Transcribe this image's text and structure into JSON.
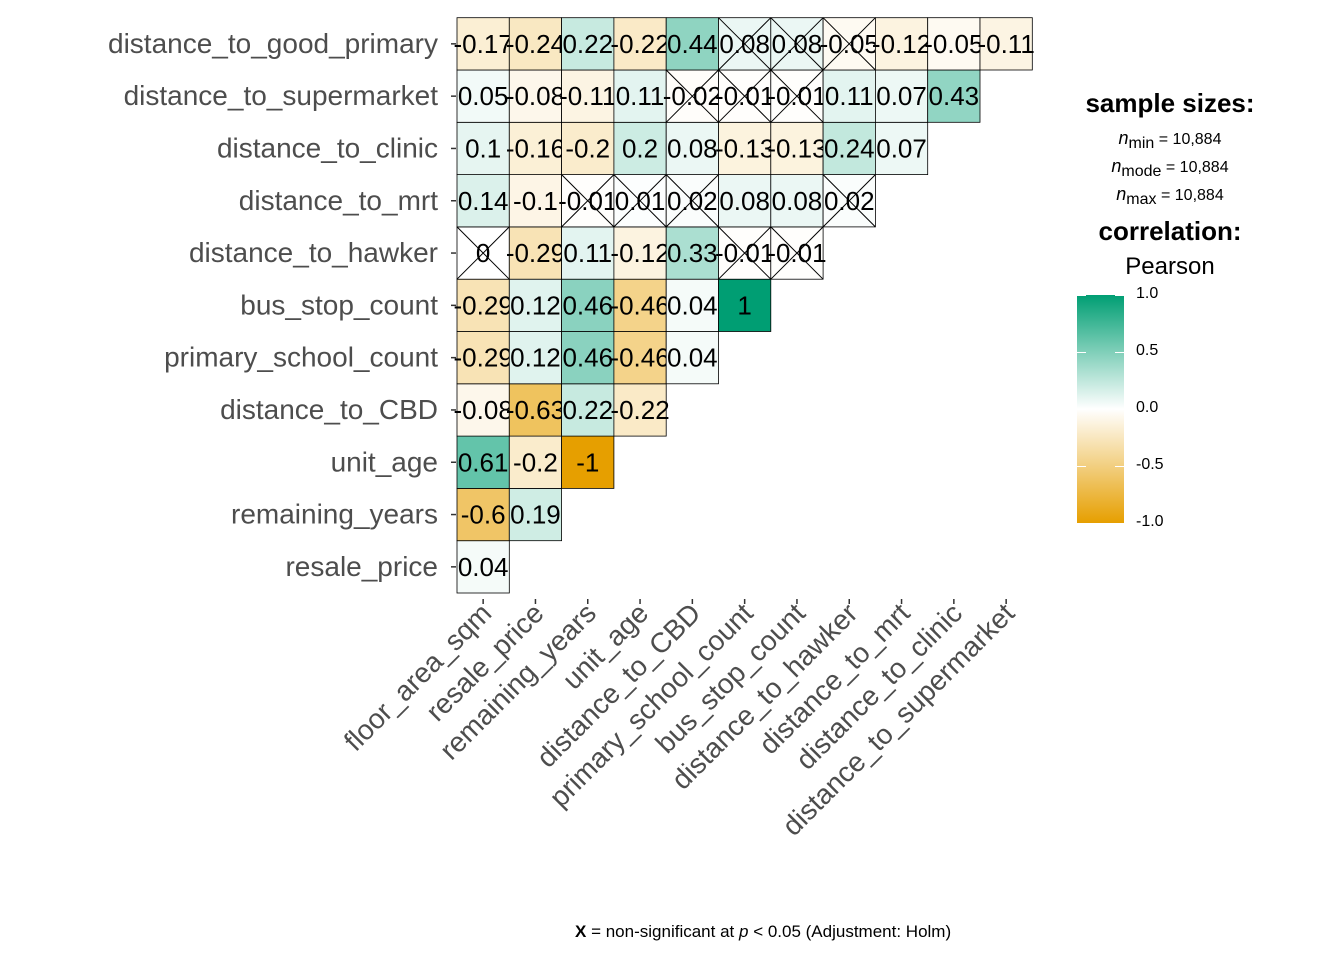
{
  "chart_data": {
    "type": "heatmap",
    "x_labels": [
      "floor_area_sqm",
      "resale_price",
      "remaining_years",
      "unit_age",
      "distance_to_CBD",
      "primary_school_count",
      "bus_stop_count",
      "distance_to_hawker",
      "distance_to_mrt",
      "distance_to_clinic",
      "distance_to_supermarket"
    ],
    "y_labels": [
      "resale_price",
      "remaining_years",
      "unit_age",
      "distance_to_CBD",
      "primary_school_count",
      "bus_stop_count",
      "distance_to_hawker",
      "distance_to_mrt",
      "distance_to_clinic",
      "distance_to_supermarket",
      "distance_to_good_primary"
    ],
    "cells": [
      {
        "row": "resale_price",
        "values": [
          "0.04"
        ],
        "nonsig": [
          false
        ]
      },
      {
        "row": "remaining_years",
        "values": [
          "-0.6",
          "0.19"
        ],
        "nonsig": [
          false,
          false
        ]
      },
      {
        "row": "unit_age",
        "values": [
          "0.61",
          "-0.2",
          "-1"
        ],
        "nonsig": [
          false,
          false,
          false
        ]
      },
      {
        "row": "distance_to_CBD",
        "values": [
          "-0.08",
          "-0.63",
          "0.22",
          "-0.22"
        ],
        "nonsig": [
          false,
          false,
          false,
          false
        ]
      },
      {
        "row": "primary_school_count",
        "values": [
          "-0.29",
          "0.12",
          "0.46",
          "-0.46",
          "0.04"
        ],
        "nonsig": [
          false,
          false,
          false,
          false,
          false
        ]
      },
      {
        "row": "bus_stop_count",
        "values": [
          "-0.29",
          "0.12",
          "0.46",
          "-0.46",
          "0.04",
          "1"
        ],
        "nonsig": [
          false,
          false,
          false,
          false,
          false,
          false
        ]
      },
      {
        "row": "distance_to_hawker",
        "values": [
          "0",
          "-0.29",
          "0.11",
          "-0.12",
          "0.33",
          "-0.01",
          "-0.01"
        ],
        "nonsig": [
          true,
          false,
          false,
          false,
          false,
          true,
          true
        ]
      },
      {
        "row": "distance_to_mrt",
        "values": [
          "0.14",
          "-0.1",
          "-0.01",
          "0.01",
          "0.02",
          "0.08",
          "0.08",
          "0.02"
        ],
        "nonsig": [
          false,
          false,
          true,
          true,
          true,
          false,
          false,
          true
        ]
      },
      {
        "row": "distance_to_clinic",
        "values": [
          "0.1",
          "-0.16",
          "-0.2",
          "0.2",
          "0.08",
          "-0.13",
          "-0.13",
          "0.24",
          "0.07"
        ],
        "nonsig": [
          false,
          false,
          false,
          false,
          false,
          false,
          false,
          false,
          false
        ]
      },
      {
        "row": "distance_to_supermarket",
        "values": [
          "0.05",
          "-0.08",
          "-0.11",
          "0.11",
          "-0.02",
          "-0.01",
          "-0.01",
          "0.11",
          "0.07",
          "0.43"
        ],
        "nonsig": [
          false,
          false,
          false,
          false,
          true,
          true,
          true,
          false,
          false,
          false
        ]
      },
      {
        "row": "distance_to_good_primary",
        "values": [
          "-0.17",
          "-0.24",
          "0.22",
          "-0.22",
          "0.44",
          "0.08",
          "0.08",
          "-0.05",
          "-0.12",
          "-0.05",
          "-0.11"
        ],
        "nonsig": [
          false,
          false,
          false,
          false,
          false,
          true,
          true,
          true,
          false,
          false,
          false
        ]
      }
    ],
    "color_scale": {
      "low": "#E69F00",
      "mid": "#FFFFFF",
      "high": "#009E73",
      "range": [
        -1,
        1
      ]
    },
    "colorbar_ticks": [
      "1.0",
      "0.5",
      "0.0",
      "-0.5",
      "-1.0"
    ]
  },
  "legend": {
    "sample_sizes_title": "sample sizes:",
    "n_symbol": "n",
    "n_min_label": "min",
    "n_mode_label": "mode",
    "n_max_label": "max",
    "n_min_value": "= 10,884",
    "n_mode_value": "= 10,884",
    "n_max_value": "= 10,884",
    "correlation_title": "correlation:",
    "correlation_method": "Pearson"
  },
  "footnote": {
    "x_symbol": "X",
    "text1": "= non-significant at",
    "p_symbol": "p",
    "text2": "< 0.05 (Adjustment: Holm)"
  }
}
